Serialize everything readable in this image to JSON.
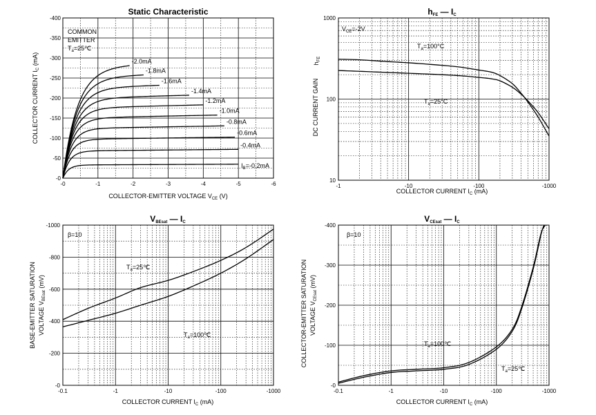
{
  "chart_data": [
    {
      "id": "static",
      "type": "line",
      "title": "Static Characteristic",
      "xlabel": "COLLECTOR-EMITTER VOLTAGE",
      "xsym": "V",
      "xsub": "CE",
      "xunit": "(V)",
      "ylabel": "COLLECTOR CURRENT",
      "ysym": "I",
      "ysub": "C",
      "yunit": "(mA)",
      "xlim": [
        0,
        -6
      ],
      "ylim": [
        0,
        -400
      ],
      "x_ticks": [
        "-0",
        "-1",
        "-2",
        "-3",
        "-4",
        "-5",
        "-6"
      ],
      "y_ticks": [
        "-0",
        "-50",
        "-100",
        "-150",
        "-200",
        "-250",
        "-300",
        "-350",
        "-400"
      ],
      "annotation": {
        "line1": "COMMON",
        "line2": "EMITTER",
        "temp_sym": "T",
        "temp_sub": "a",
        "temp_val": "=25℃"
      },
      "series": [
        {
          "name": "-0.2mA",
          "sym": "I",
          "sub": "B",
          "val": "=-0.2mA",
          "sat": 33,
          "end_v": -5.0
        },
        {
          "name": "-0.4mA",
          "sat": 68,
          "end_v": -5.0
        },
        {
          "name": "-0.6mA",
          "sat": 97,
          "end_v": -4.9
        },
        {
          "name": "-0.8mA",
          "sat": 124,
          "end_v": -4.6
        },
        {
          "name": "-1.0mA",
          "sat": 150,
          "end_v": -4.4
        },
        {
          "name": "-1.2mA",
          "sat": 175,
          "end_v": -4.0
        },
        {
          "name": "-1.4mA",
          "sat": 199,
          "end_v": -3.6
        },
        {
          "name": "-1.6mA",
          "sat": 225,
          "end_v": -2.75
        },
        {
          "name": "-1.8mA",
          "sat": 252,
          "end_v": -2.3
        },
        {
          "name": "-2.0mA",
          "sat": 278,
          "end_v": -1.9
        }
      ]
    },
    {
      "id": "hfe",
      "type": "line",
      "title_main": "h",
      "title_main_sub": "FE",
      "title_dash": "—",
      "title_tail": "I",
      "title_tail_sub": "C",
      "xlabel": "COLLECTOR CURRENT",
      "xsym": "I",
      "xsub": "C",
      "xunit": "(mA)",
      "ylabel": "DC CURRENT GAIN",
      "ysym": "h",
      "ysub": "FE",
      "xscale": "log",
      "yscale": "log",
      "xlim": [
        -1,
        -1000
      ],
      "ylim": [
        10,
        1000
      ],
      "x_ticks": [
        "-1",
        "-10",
        "-100",
        "-1000"
      ],
      "y_ticks": [
        "10",
        "100",
        "1000"
      ],
      "condition": {
        "sym": "V",
        "sub": "CE",
        "val": "=-2V"
      },
      "series": [
        {
          "name": "Ta=100℃",
          "sym": "T",
          "sub": "a",
          "val": "=100°C",
          "x": [
            1,
            2,
            5,
            10,
            20,
            50,
            100,
            150,
            200,
            300,
            400,
            500,
            700,
            1000
          ],
          "y": [
            310,
            305,
            290,
            280,
            268,
            250,
            228,
            215,
            195,
            155,
            118,
            92,
            60,
            35
          ]
        },
        {
          "name": "Ta=25℃",
          "sym": "T",
          "sub": "a",
          "val": "=25°C",
          "x": [
            1,
            2,
            5,
            10,
            20,
            50,
            100,
            150,
            200,
            300,
            400,
            500,
            700,
            1000
          ],
          "y": [
            225,
            220,
            213,
            208,
            203,
            195,
            185,
            178,
            168,
            140,
            115,
            95,
            68,
            43
          ]
        }
      ]
    },
    {
      "id": "vbe",
      "type": "line",
      "title_main": "V",
      "title_main_sub": "BEsat",
      "title_dash": "—",
      "title_tail": "I",
      "title_tail_sub": "C",
      "xlabel": "COLLECTOR CURRENT",
      "xsym": "I",
      "xsub": "C",
      "xunit": "(mA)",
      "ylabel1": "BASE-EMITTER SATURATION",
      "ylabel2": "VOLTAGE",
      "ysym": "V",
      "ysub": "BEsat",
      "yunit": "(mV)",
      "xscale": "log",
      "xlim": [
        -0.1,
        -1000
      ],
      "ylim": [
        0,
        -1000
      ],
      "x_ticks": [
        "-0.1",
        "-1",
        "-10",
        "-100",
        "-1000"
      ],
      "y_ticks": [
        "-0",
        "-200",
        "-400",
        "-600",
        "-800",
        "-1000"
      ],
      "condition": {
        "val": "β=10"
      },
      "series": [
        {
          "name": "Ta=25℃",
          "sym": "T",
          "sub": "a",
          "val": "=25℃",
          "x": [
            0.1,
            0.3,
            1,
            3,
            10,
            30,
            100,
            300,
            1000
          ],
          "y": [
            -410,
            -480,
            -545,
            -610,
            -655,
            -710,
            -780,
            -860,
            -975
          ]
        },
        {
          "name": "Ta=100℃",
          "sym": "T",
          "sub": "a",
          "val": "=100℃",
          "x": [
            0.1,
            0.3,
            1,
            3,
            10,
            30,
            100,
            300,
            1000
          ],
          "y": [
            -365,
            -405,
            -450,
            -500,
            -555,
            -620,
            -700,
            -790,
            -910
          ]
        }
      ]
    },
    {
      "id": "vce",
      "type": "line",
      "title_main": "V",
      "title_main_sub": "CEsat",
      "title_dash": "—",
      "title_tail": "I",
      "title_tail_sub": "C",
      "xlabel": "COLLECTOR CURRENT",
      "xsym": "I",
      "xsub": "C",
      "xunit": "(mA)",
      "ylabel1": "COLLECTOR-EMITTER SATURATION",
      "ylabel2": "VOLTAGE",
      "ysym": "V",
      "ysub": "CEsat",
      "yunit": "(mV)",
      "xscale": "log",
      "xlim": [
        -0.1,
        -1000
      ],
      "ylim": [
        0,
        -400
      ],
      "x_ticks": [
        "-0.1",
        "-1",
        "-10",
        "-100",
        "-1000"
      ],
      "y_ticks": [
        "-0",
        "-100",
        "-200",
        "-300",
        "-400"
      ],
      "condition": {
        "val": "β=10"
      },
      "series": [
        {
          "name": "Ta=100℃",
          "sym": "T",
          "sub": "a",
          "val": "=100℃",
          "x": [
            0.1,
            0.3,
            1,
            3,
            10,
            30,
            100,
            200,
            300,
            500,
            700,
            800
          ],
          "y": [
            -5,
            -20,
            -32,
            -36,
            -40,
            -52,
            -90,
            -135,
            -190,
            -290,
            -375,
            -400
          ]
        },
        {
          "name": "Ta=25℃",
          "sym": "T",
          "sub": "a",
          "val": "=25℃",
          "x": [
            0.1,
            0.3,
            1,
            3,
            10,
            30,
            100,
            200,
            300,
            500,
            700,
            850
          ],
          "y": [
            -8,
            -24,
            -36,
            -40,
            -44,
            -57,
            -96,
            -140,
            -195,
            -295,
            -378,
            -400
          ]
        }
      ]
    }
  ]
}
